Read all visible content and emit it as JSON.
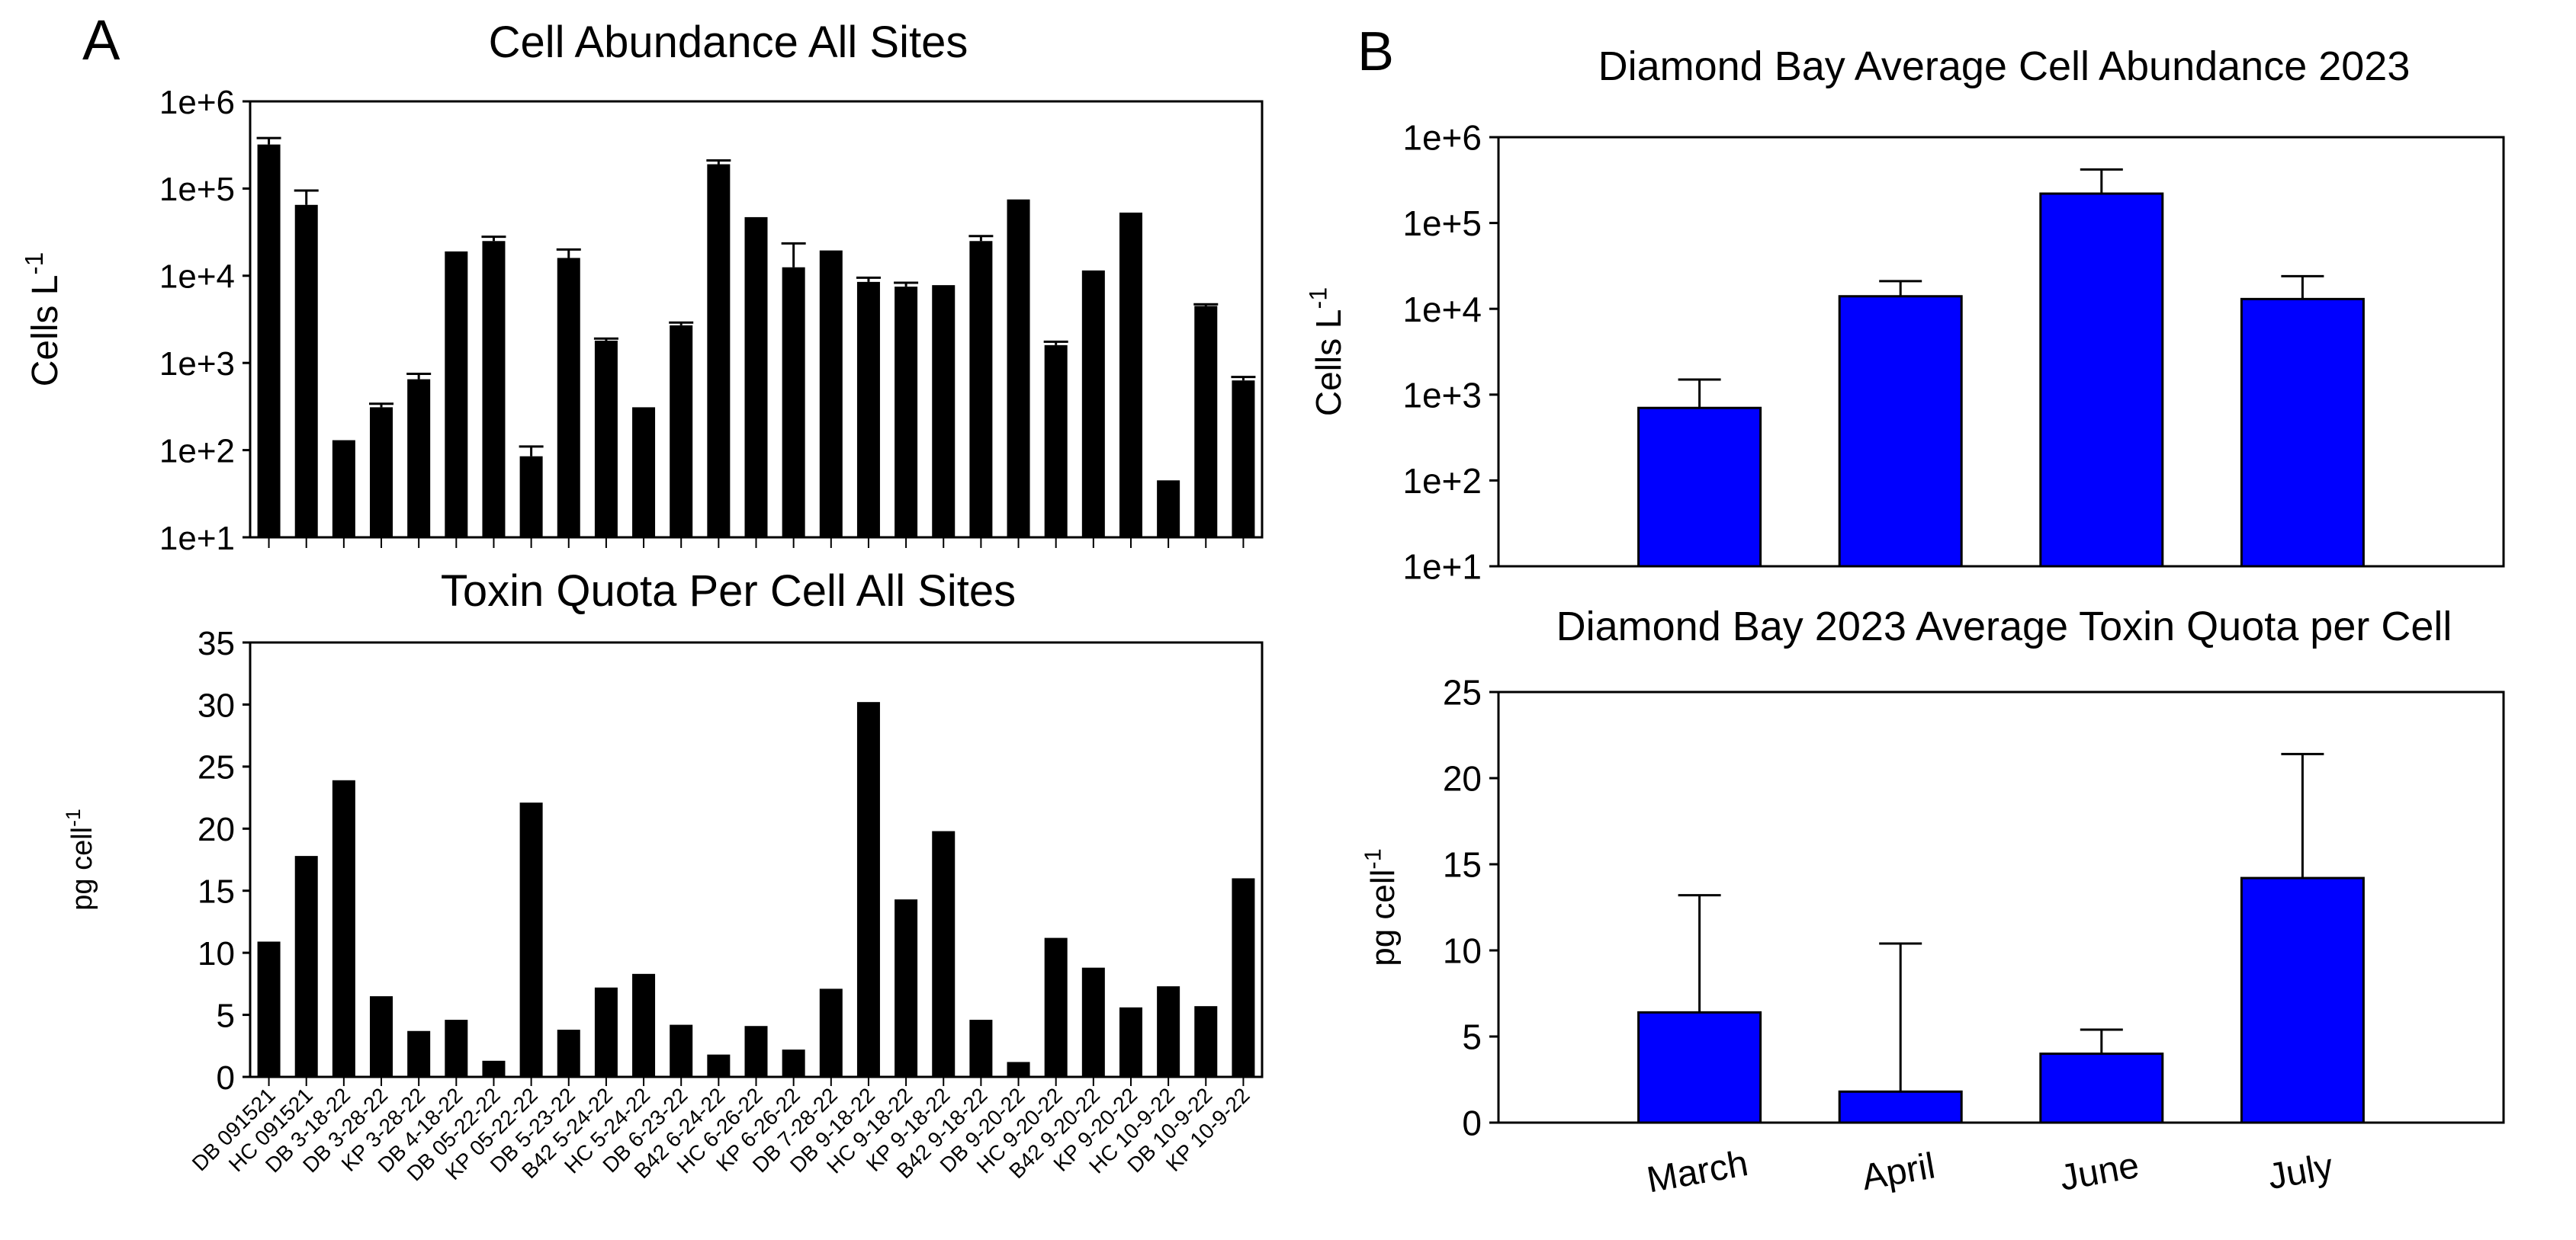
{
  "panels": {
    "A": {
      "label": "A"
    },
    "B": {
      "label": "B"
    }
  },
  "colors": {
    "bars_A": "#000000",
    "bars_B": "#0000ff",
    "axis": "#000000"
  },
  "chart_data": [
    {
      "id": "A_top",
      "type": "bar",
      "title": "Cell Abundance All Sites",
      "ylabel": "Cells L",
      "ylabel_sup": "-1",
      "yscale": "log",
      "ylim": [
        10,
        1000000
      ],
      "yticks": [
        10,
        100,
        1000,
        10000,
        100000,
        1000000
      ],
      "ytick_labels": [
        "1e+1",
        "1e+2",
        "1e+3",
        "1e+4",
        "1e+5",
        "1e+6"
      ],
      "categories": [
        "DB 091521",
        "HC 091521",
        "DB 3-18-22",
        "DB 3-28-22",
        "KP 3-28-22",
        "DB 4-18-22",
        "DB 05-22-22",
        "KP 05-22-22",
        "DB 5-23-22",
        "B42 5-24-22",
        "HC 5-24-22",
        "DB 6-23-22",
        "B42 6-24-22",
        "HC 6-26-22",
        "KP 6-26-22",
        "DB 7-28-22",
        "DB 9-18-22",
        "HC 9-18-22",
        "KP 9-18-22",
        "B42 9-18-22",
        "DB 9-20-22",
        "HC 9-20-22",
        "B42 9-20-22",
        "KP 9-20-22",
        "HC 10-9-22",
        "DB 10-9-22",
        "KP 10-9-22"
      ],
      "values": [
        320000,
        65000,
        130,
        310,
        650,
        19000,
        25000,
        85,
        16000,
        1800,
        310,
        2700,
        190000,
        47000,
        12500,
        19500,
        8500,
        7500,
        7800,
        25000,
        75000,
        1600,
        11500,
        53000,
        45,
        4500,
        630
      ],
      "errors": [
        60000,
        30000,
        0,
        30,
        100,
        0,
        3000,
        25,
        4000,
        100,
        0,
        200,
        20000,
        0,
        11000,
        0,
        1000,
        800,
        0,
        3500,
        0,
        150,
        0,
        0,
        0,
        200,
        60
      ]
    },
    {
      "id": "A_bottom",
      "type": "bar",
      "title": "Toxin Quota Per Cell All Sites",
      "ylabel": "pg cell",
      "ylabel_sup": "-1",
      "ylim": [
        0,
        35
      ],
      "yticks": [
        0,
        5,
        10,
        15,
        20,
        25,
        30,
        35
      ],
      "ytick_labels": [
        "0",
        "5",
        "10",
        "15",
        "20",
        "25",
        "30",
        "35"
      ],
      "categories": [
        "DB 091521",
        "HC 091521",
        "DB 3-18-22",
        "DB 3-28-22",
        "KP 3-28-22",
        "DB 4-18-22",
        "DB 05-22-22",
        "KP 05-22-22",
        "DB 5-23-22",
        "B42 5-24-22",
        "HC 5-24-22",
        "DB 6-23-22",
        "B42 6-24-22",
        "HC 6-26-22",
        "KP 6-26-22",
        "DB 7-28-22",
        "DB 9-18-22",
        "HC 9-18-22",
        "KP 9-18-22",
        "B42 9-18-22",
        "DB 9-20-22",
        "HC 9-20-22",
        "B42 9-20-22",
        "KP 9-20-22",
        "HC 10-9-22",
        "DB 10-9-22",
        "KP 10-9-22"
      ],
      "values": [
        10.9,
        17.8,
        23.9,
        6.5,
        3.7,
        4.6,
        1.3,
        22.1,
        3.8,
        7.2,
        8.3,
        4.2,
        1.8,
        4.1,
        2.2,
        7.1,
        30.2,
        14.3,
        19.8,
        4.6,
        1.2,
        11.2,
        8.8,
        5.6,
        7.3,
        5.7,
        16.0
      ]
    },
    {
      "id": "B_top",
      "type": "bar",
      "title": "Diamond Bay Average Cell Abundance 2023",
      "ylabel": "Cells L",
      "ylabel_sup": "-1",
      "yscale": "log",
      "ylim": [
        10,
        1000000
      ],
      "yticks": [
        10,
        100,
        1000,
        10000,
        100000,
        1000000
      ],
      "ytick_labels": [
        "1e+1",
        "1e+2",
        "1e+3",
        "1e+4",
        "1e+5",
        "1e+6"
      ],
      "categories": [
        "March",
        "April",
        "June",
        "July"
      ],
      "values": [
        700,
        14000,
        220000,
        13000
      ],
      "errors": [
        800,
        7000,
        200000,
        11000
      ]
    },
    {
      "id": "B_bottom",
      "type": "bar",
      "title": "Diamond Bay 2023 Average Toxin Quota per Cell",
      "ylabel": "pg cell",
      "ylabel_sup": "-1",
      "ylim": [
        0,
        25
      ],
      "yticks": [
        0,
        5,
        10,
        15,
        20,
        25
      ],
      "ytick_labels": [
        "0",
        "5",
        "10",
        "15",
        "20",
        "25"
      ],
      "categories": [
        "March",
        "April",
        "June",
        "July"
      ],
      "values": [
        6.4,
        1.8,
        4.0,
        14.2
      ],
      "errors": [
        6.8,
        8.6,
        1.4,
        7.2
      ]
    }
  ]
}
